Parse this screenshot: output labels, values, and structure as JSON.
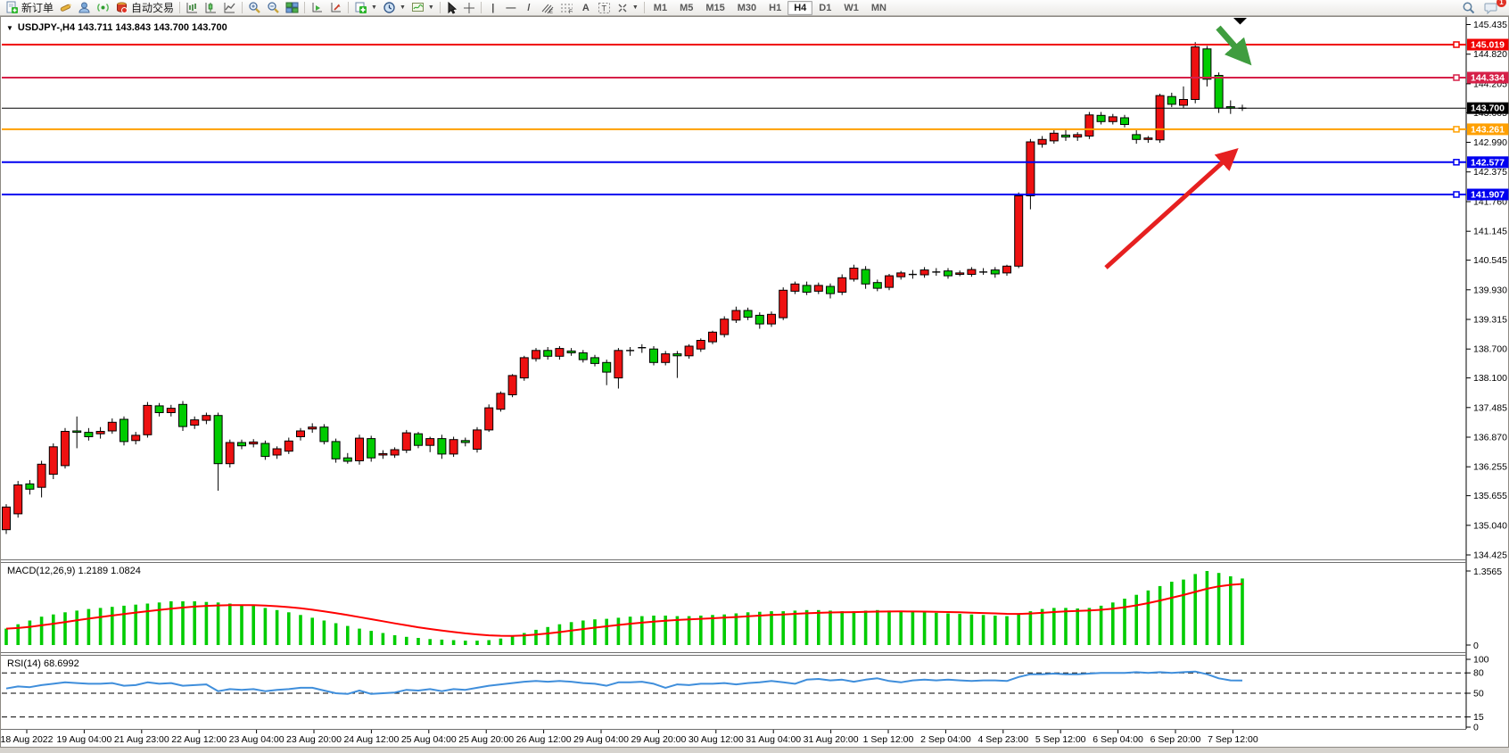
{
  "toolbar": {
    "new_order": "新订单",
    "auto_trading": "自动交易",
    "timeframes": [
      "M1",
      "M5",
      "M15",
      "M30",
      "H1",
      "H4",
      "D1",
      "W1",
      "MN"
    ],
    "active_timeframe": "H4",
    "notification_badge": "1"
  },
  "chart": {
    "title": "USDJPY-,H4  143.711 143.843 143.700 143.700",
    "macd_label": "MACD(12,26,9) 1.2189 1.0824",
    "rsi_label": "RSI(14) 68.6992"
  },
  "chart_data": {
    "type": "candlestick",
    "symbol": "USDJPY-",
    "timeframe": "H4",
    "quote": {
      "open": "143.711",
      "high": "143.843",
      "low": "143.700",
      "close": "143.700"
    },
    "price_ticks": [
      "145.435",
      "144.820",
      "144.205",
      "143.605",
      "142.990",
      "142.375",
      "141.760",
      "141.145",
      "140.545",
      "139.930",
      "139.315",
      "138.700",
      "138.100",
      "137.485",
      "136.870",
      "136.255",
      "135.655",
      "135.040",
      "134.425"
    ],
    "levels": [
      {
        "price": "145.019",
        "color": "#f00000"
      },
      {
        "price": "144.334",
        "color": "#d62048"
      },
      {
        "price": "143.261",
        "color": "#ffa000"
      },
      {
        "price": "142.577",
        "color": "#0000f0"
      },
      {
        "price": "141.907",
        "color": "#0000f0"
      }
    ],
    "current_price": {
      "value": "143.700",
      "color": "#000000"
    },
    "colors": {
      "bull": "#ee1111",
      "bear": "#00cc00",
      "wick": "#000000",
      "macd_hist": "#00cc00",
      "macd_signal": "#ff0000",
      "rsi_line": "#3f8edb",
      "red_arrow": "#e62020",
      "green_arrow": "#3f9d3f"
    },
    "candles": [
      [
        134.95,
        135.48,
        134.86,
        135.42
      ],
      [
        135.28,
        135.96,
        135.2,
        135.88
      ],
      [
        135.9,
        135.98,
        135.68,
        135.79
      ],
      [
        135.83,
        136.38,
        135.62,
        136.31
      ],
      [
        136.1,
        136.74,
        136.0,
        136.67
      ],
      [
        136.28,
        137.06,
        136.22,
        136.99
      ],
      [
        137.0,
        137.3,
        136.64,
        136.97
      ],
      [
        136.97,
        137.06,
        136.8,
        136.88
      ],
      [
        136.94,
        137.08,
        136.84,
        136.99
      ],
      [
        137.0,
        137.26,
        136.94,
        137.18
      ],
      [
        137.24,
        137.3,
        136.7,
        136.78
      ],
      [
        136.8,
        136.98,
        136.72,
        136.91
      ],
      [
        136.92,
        137.6,
        136.86,
        137.53
      ],
      [
        137.52,
        137.58,
        137.3,
        137.38
      ],
      [
        137.38,
        137.54,
        137.3,
        137.47
      ],
      [
        137.55,
        137.62,
        137.0,
        137.09
      ],
      [
        137.12,
        137.3,
        137.04,
        137.23
      ],
      [
        137.22,
        137.38,
        137.14,
        137.32
      ],
      [
        137.32,
        137.38,
        135.76,
        136.32
      ],
      [
        136.32,
        136.82,
        136.24,
        136.76
      ],
      [
        136.76,
        136.82,
        136.62,
        136.69
      ],
      [
        136.73,
        136.83,
        136.66,
        136.77
      ],
      [
        136.74,
        136.8,
        136.4,
        136.47
      ],
      [
        136.5,
        136.68,
        136.42,
        136.63
      ],
      [
        136.58,
        136.86,
        136.52,
        136.79
      ],
      [
        136.88,
        137.06,
        136.8,
        137.0
      ],
      [
        137.04,
        137.16,
        136.96,
        137.08
      ],
      [
        137.08,
        137.14,
        136.72,
        136.78
      ],
      [
        136.78,
        136.84,
        136.34,
        136.42
      ],
      [
        136.44,
        136.54,
        136.32,
        136.37
      ],
      [
        136.38,
        136.92,
        136.3,
        136.85
      ],
      [
        136.84,
        136.9,
        136.36,
        136.44
      ],
      [
        136.5,
        136.6,
        136.42,
        136.53
      ],
      [
        136.5,
        136.66,
        136.44,
        136.61
      ],
      [
        136.6,
        137.02,
        136.54,
        136.96
      ],
      [
        136.94,
        136.98,
        136.64,
        136.7
      ],
      [
        136.7,
        136.88,
        136.56,
        136.84
      ],
      [
        136.84,
        136.92,
        136.42,
        136.52
      ],
      [
        136.52,
        136.88,
        136.46,
        136.82
      ],
      [
        136.8,
        136.86,
        136.68,
        136.76
      ],
      [
        136.62,
        137.08,
        136.55,
        137.02
      ],
      [
        137.02,
        137.55,
        136.98,
        137.48
      ],
      [
        137.45,
        137.82,
        137.4,
        137.78
      ],
      [
        137.75,
        138.18,
        137.7,
        138.15
      ],
      [
        138.1,
        138.56,
        138.04,
        138.52
      ],
      [
        138.5,
        138.72,
        138.44,
        138.67
      ],
      [
        138.67,
        138.74,
        138.48,
        138.55
      ],
      [
        138.55,
        138.76,
        138.48,
        138.71
      ],
      [
        138.66,
        138.72,
        138.56,
        138.62
      ],
      [
        138.62,
        138.68,
        138.42,
        138.48
      ],
      [
        138.52,
        138.58,
        138.34,
        138.4
      ],
      [
        138.42,
        138.48,
        137.95,
        138.22
      ],
      [
        138.1,
        138.72,
        137.88,
        138.67
      ],
      [
        138.65,
        138.74,
        138.56,
        138.67
      ],
      [
        138.71,
        138.8,
        138.62,
        138.73
      ],
      [
        138.7,
        138.76,
        138.36,
        138.42
      ],
      [
        138.42,
        138.66,
        138.36,
        138.6
      ],
      [
        138.6,
        138.66,
        138.1,
        138.56
      ],
      [
        138.56,
        138.8,
        138.5,
        138.76
      ],
      [
        138.7,
        138.92,
        138.64,
        138.88
      ],
      [
        138.85,
        139.08,
        138.8,
        139.05
      ],
      [
        139.0,
        139.38,
        138.94,
        139.32
      ],
      [
        139.3,
        139.58,
        139.24,
        139.5
      ],
      [
        139.5,
        139.56,
        139.3,
        139.36
      ],
      [
        139.4,
        139.46,
        139.12,
        139.22
      ],
      [
        139.22,
        139.48,
        139.16,
        139.42
      ],
      [
        139.35,
        139.98,
        139.3,
        139.92
      ],
      [
        139.9,
        140.1,
        139.84,
        140.05
      ],
      [
        140.02,
        140.1,
        139.82,
        139.88
      ],
      [
        139.9,
        140.08,
        139.84,
        140.02
      ],
      [
        140.0,
        140.06,
        139.75,
        139.85
      ],
      [
        139.88,
        140.25,
        139.82,
        140.18
      ],
      [
        140.15,
        140.45,
        140.1,
        140.38
      ],
      [
        140.35,
        140.42,
        139.95,
        140.05
      ],
      [
        140.08,
        140.14,
        139.9,
        139.96
      ],
      [
        139.98,
        140.26,
        139.92,
        140.22
      ],
      [
        140.2,
        140.32,
        140.14,
        140.28
      ],
      [
        140.26,
        140.34,
        140.16,
        140.25
      ],
      [
        140.24,
        140.4,
        140.18,
        140.34
      ],
      [
        140.32,
        140.38,
        140.22,
        140.3
      ],
      [
        140.32,
        140.38,
        140.16,
        140.22
      ],
      [
        140.25,
        140.33,
        140.21,
        140.28
      ],
      [
        140.25,
        140.4,
        140.2,
        140.35
      ],
      [
        140.32,
        140.38,
        140.24,
        140.3
      ],
      [
        140.34,
        140.4,
        140.18,
        140.26
      ],
      [
        140.28,
        140.45,
        140.22,
        140.42
      ],
      [
        140.42,
        141.95,
        140.38,
        141.88
      ],
      [
        141.88,
        143.06,
        141.6,
        143.0
      ],
      [
        142.95,
        143.12,
        142.88,
        143.05
      ],
      [
        143.02,
        143.24,
        142.96,
        143.18
      ],
      [
        143.14,
        143.26,
        143.02,
        143.1
      ],
      [
        143.1,
        143.2,
        143.02,
        143.15
      ],
      [
        143.12,
        143.62,
        143.06,
        143.56
      ],
      [
        143.55,
        143.62,
        143.36,
        143.42
      ],
      [
        143.42,
        143.58,
        143.36,
        143.52
      ],
      [
        143.5,
        143.56,
        143.3,
        143.36
      ],
      [
        143.15,
        143.24,
        142.96,
        143.05
      ],
      [
        143.05,
        143.12,
        142.98,
        143.08
      ],
      [
        143.04,
        144.0,
        142.98,
        143.96
      ],
      [
        143.94,
        144.02,
        143.72,
        143.78
      ],
      [
        143.76,
        144.15,
        143.7,
        143.88
      ],
      [
        143.88,
        145.07,
        143.8,
        144.97
      ],
      [
        144.93,
        144.99,
        144.15,
        144.3
      ],
      [
        144.38,
        144.44,
        143.6,
        143.7
      ],
      [
        143.73,
        143.86,
        143.58,
        143.7
      ],
      [
        143.7,
        143.77,
        143.64,
        143.7
      ]
    ],
    "macd": {
      "title": "MACD(12,26,9)",
      "main": "1.2189",
      "signal": "1.0824",
      "axis_max": "1.3565",
      "axis_min": "0",
      "hist": [
        0.3,
        0.38,
        0.45,
        0.52,
        0.56,
        0.6,
        0.63,
        0.66,
        0.68,
        0.7,
        0.72,
        0.74,
        0.76,
        0.78,
        0.8,
        0.8,
        0.8,
        0.79,
        0.78,
        0.76,
        0.74,
        0.72,
        0.68,
        0.64,
        0.6,
        0.55,
        0.5,
        0.45,
        0.4,
        0.35,
        0.3,
        0.26,
        0.22,
        0.18,
        0.15,
        0.13,
        0.11,
        0.1,
        0.09,
        0.08,
        0.08,
        0.09,
        0.12,
        0.16,
        0.22,
        0.28,
        0.33,
        0.38,
        0.42,
        0.45,
        0.47,
        0.48,
        0.5,
        0.52,
        0.53,
        0.54,
        0.54,
        0.53,
        0.53,
        0.54,
        0.55,
        0.56,
        0.58,
        0.6,
        0.61,
        0.62,
        0.62,
        0.63,
        0.64,
        0.64,
        0.63,
        0.62,
        0.62,
        0.63,
        0.64,
        0.63,
        0.62,
        0.61,
        0.6,
        0.59,
        0.58,
        0.57,
        0.56,
        0.55,
        0.54,
        0.53,
        0.56,
        0.62,
        0.66,
        0.68,
        0.68,
        0.67,
        0.68,
        0.72,
        0.78,
        0.85,
        0.92,
        1.0,
        1.08,
        1.16,
        1.2,
        1.3,
        1.3565,
        1.32,
        1.26,
        1.2189
      ]
    },
    "rsi": {
      "title": "RSI(14)",
      "value": "68.6992",
      "axis": [
        "100",
        "80",
        "50",
        "15",
        "0"
      ],
      "guides": [
        80,
        50,
        15
      ],
      "values": [
        57,
        60,
        59,
        62,
        64,
        66,
        65,
        64,
        64,
        65,
        61,
        62,
        66,
        64,
        65,
        61,
        62,
        63,
        53,
        56,
        55,
        56,
        53,
        55,
        56,
        58,
        58,
        54,
        50,
        49,
        54,
        49,
        50,
        51,
        55,
        54,
        56,
        53,
        56,
        55,
        58,
        61,
        63,
        65,
        67,
        68,
        67,
        68,
        67,
        65,
        64,
        61,
        66,
        66,
        67,
        64,
        58,
        63,
        62,
        64,
        64,
        65,
        63,
        65,
        66,
        68,
        66,
        64,
        70,
        71,
        69,
        70,
        67,
        70,
        72,
        68,
        66,
        69,
        70,
        69,
        70,
        69,
        68,
        69,
        69,
        68,
        74,
        78,
        78,
        79,
        78,
        78,
        79,
        80,
        80,
        80,
        81,
        80,
        81,
        80,
        81,
        82,
        78,
        72,
        69,
        68.7
      ]
    },
    "dates": [
      "18 Aug 2022",
      "19 Aug 04:00",
      "21 Aug 23:00",
      "22 Aug 12:00",
      "23 Aug 04:00",
      "23 Aug 20:00",
      "24 Aug 12:00",
      "25 Aug 04:00",
      "25 Aug 20:00",
      "26 Aug 12:00",
      "29 Aug 04:00",
      "29 Aug 20:00",
      "30 Aug 12:00",
      "31 Aug 04:00",
      "31 Aug 20:00",
      "1 Sep 12:00",
      "2 Sep 04:00",
      "4 Sep 23:00",
      "5 Sep 12:00",
      "6 Sep 04:00",
      "6 Sep 20:00",
      "7 Sep 12:00"
    ],
    "annotations": [
      {
        "name": "red-up-arrow",
        "color": "#e62020"
      },
      {
        "name": "green-down-arrow",
        "color": "#3f9d3f"
      },
      {
        "name": "chart-shift-marker",
        "color": "#000000"
      }
    ]
  }
}
